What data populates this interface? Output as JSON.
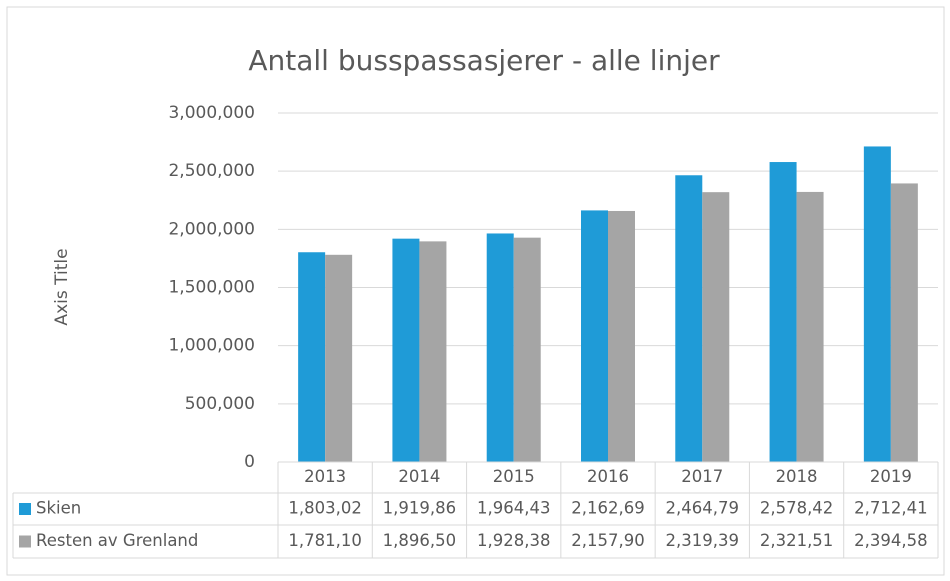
{
  "chart_data": {
    "type": "bar",
    "title": "Antall busspassasjerer - alle linjer",
    "y_label": "Axis Title",
    "categories": [
      "2013",
      "2014",
      "2015",
      "2016",
      "2017",
      "2018",
      "2019"
    ],
    "series": [
      {
        "name": "Skien",
        "color": "#1f9bd7",
        "values": [
          1803020,
          1919860,
          1964430,
          2162690,
          2464790,
          2578420,
          2712410
        ],
        "value_labels": [
          "1,803,02",
          "1,919,86",
          "1,964,43",
          "2,162,69",
          "2,464,79",
          "2,578,42",
          "2,712,41"
        ]
      },
      {
        "name": "Resten av Grenland",
        "color": "#a5a5a5",
        "values": [
          1781100,
          1896500,
          1928380,
          2157900,
          2319390,
          2321510,
          2394580
        ],
        "value_labels": [
          "1,781,10",
          "1,896,50",
          "1,928,38",
          "2,157,90",
          "2,319,39",
          "2,321,51",
          "2,394,58"
        ]
      }
    ],
    "ylim": [
      0,
      3000000
    ],
    "yticks": [
      0,
      {
        "value": 500000,
        "label": "500,000"
      },
      {
        "value": 1000000,
        "label": "1,000,000"
      },
      {
        "value": 1500000,
        "label": "1,500,000"
      },
      {
        "value": 2000000,
        "label": "2,000,000"
      },
      {
        "value": 2500000,
        "label": "2,500,000"
      },
      {
        "value": 3000000,
        "label": "3,000,000"
      }
    ],
    "grid": true
  }
}
